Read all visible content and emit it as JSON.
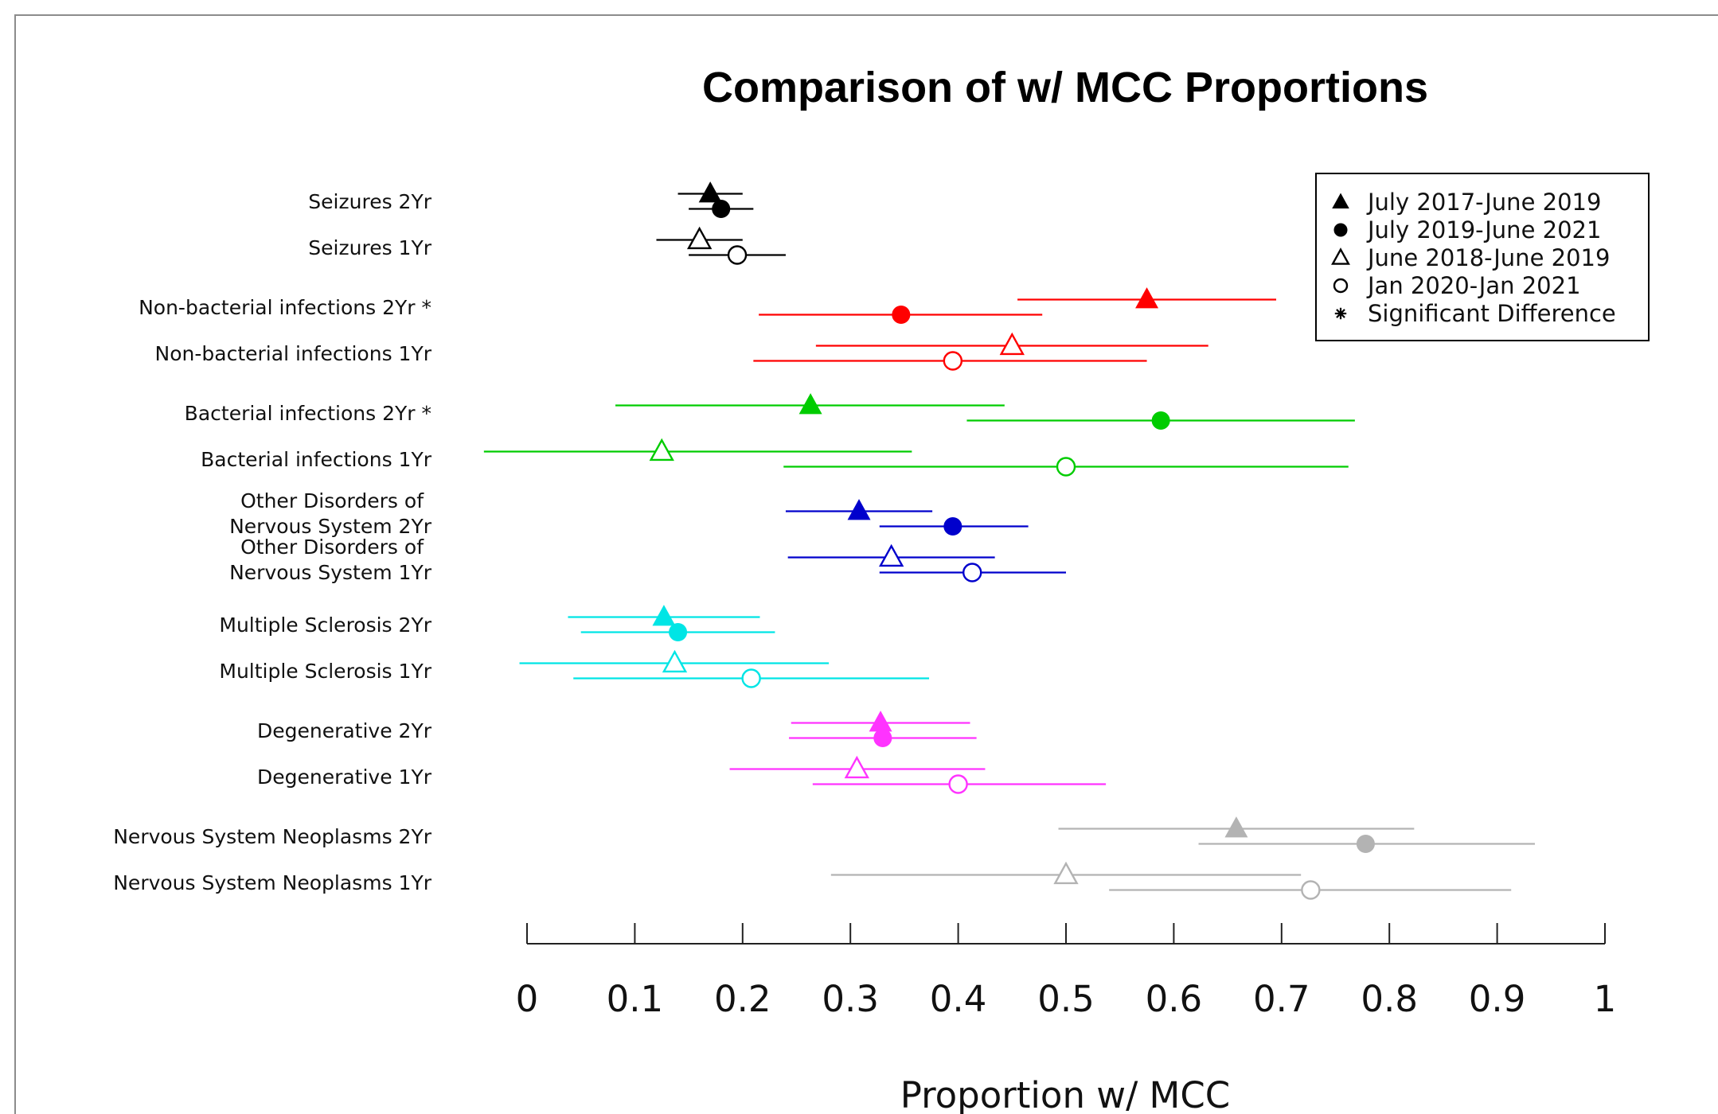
{
  "chart_data": {
    "type": "scatter",
    "subtype": "forest-plot-with-confidence-intervals",
    "title": "Comparison of w/ MCC Proportions",
    "xlabel": "Proportion w/ MCC",
    "ylabel": "",
    "xlim": [
      0,
      1
    ],
    "x_ticks": [
      "0",
      "0.1",
      "0.2",
      "0.3",
      "0.4",
      "0.5",
      "0.6",
      "0.7",
      "0.8",
      "0.9",
      "1"
    ],
    "grid": false,
    "legend_position": "top-right",
    "legend": [
      {
        "label": "July 2017-June 2019",
        "marker": "filled-triangle"
      },
      {
        "label": "July 2019-June 2021",
        "marker": "filled-circle"
      },
      {
        "label": "June 2018-June 2019",
        "marker": "open-triangle"
      },
      {
        "label": "Jan 2020-Jan 2021",
        "marker": "open-circle"
      },
      {
        "label": "Significant Difference",
        "marker": "asterisk"
      }
    ],
    "groups": [
      {
        "name": "Seizures",
        "color": "#000000",
        "rows": [
          {
            "label": "Seizures 2Yr",
            "label_lines": [
              "Seizures 2Yr"
            ],
            "points": [
              {
                "period": "July 2017-June 2019",
                "marker": "filled-triangle",
                "value": 0.17,
                "lo": 0.14,
                "hi": 0.2
              },
              {
                "period": "July 2019-June 2021",
                "marker": "filled-circle",
                "value": 0.18,
                "lo": 0.15,
                "hi": 0.21
              }
            ]
          },
          {
            "label": "Seizures 1Yr",
            "label_lines": [
              "Seizures 1Yr"
            ],
            "points": [
              {
                "period": "June 2018-June 2019",
                "marker": "open-triangle",
                "value": 0.16,
                "lo": 0.12,
                "hi": 0.2
              },
              {
                "period": "Jan 2020-Jan 2021",
                "marker": "open-circle",
                "value": 0.195,
                "lo": 0.15,
                "hi": 0.24
              }
            ]
          }
        ]
      },
      {
        "name": "Non-bacterial infections",
        "color": "#ff0000",
        "rows": [
          {
            "label": "Non-bacterial infections 2Yr *",
            "label_lines": [
              "Non-bacterial infections 2Yr *"
            ],
            "points": [
              {
                "period": "July 2017-June 2019",
                "marker": "filled-triangle",
                "value": 0.575,
                "lo": 0.455,
                "hi": 0.695
              },
              {
                "period": "July 2019-June 2021",
                "marker": "filled-circle",
                "value": 0.347,
                "lo": 0.215,
                "hi": 0.478
              }
            ]
          },
          {
            "label": "Non-bacterial infections 1Yr",
            "label_lines": [
              "Non-bacterial infections 1Yr"
            ],
            "points": [
              {
                "period": "June 2018-June 2019",
                "marker": "open-triangle",
                "value": 0.45,
                "lo": 0.268,
                "hi": 0.632
              },
              {
                "period": "Jan 2020-Jan 2021",
                "marker": "open-circle",
                "value": 0.395,
                "lo": 0.21,
                "hi": 0.575
              }
            ]
          }
        ]
      },
      {
        "name": "Bacterial infections",
        "color": "#00cc00",
        "rows": [
          {
            "label": "Bacterial infections 2Yr *",
            "label_lines": [
              "Bacterial infections 2Yr *"
            ],
            "points": [
              {
                "period": "July 2017-June 2019",
                "marker": "filled-triangle",
                "value": 0.263,
                "lo": 0.082,
                "hi": 0.443
              },
              {
                "period": "July 2019-June 2021",
                "marker": "filled-circle",
                "value": 0.588,
                "lo": 0.408,
                "hi": 0.768
              }
            ]
          },
          {
            "label": "Bacterial infections 1Yr",
            "label_lines": [
              "Bacterial infections 1Yr"
            ],
            "points": [
              {
                "period": "June 2018-June 2019",
                "marker": "open-triangle",
                "value": 0.125,
                "lo": -0.04,
                "hi": 0.357
              },
              {
                "period": "Jan 2020-Jan 2021",
                "marker": "open-circle",
                "value": 0.5,
                "lo": 0.238,
                "hi": 0.762
              }
            ]
          }
        ]
      },
      {
        "name": "Other Disorders of Nervous System",
        "color": "#0000cc",
        "rows": [
          {
            "label": "Other Disorders of Nervous System 2Yr",
            "label_lines": [
              "Other Disorders of",
              "Nervous System 2Yr"
            ],
            "points": [
              {
                "period": "July 2017-June 2019",
                "marker": "filled-triangle",
                "value": 0.308,
                "lo": 0.24,
                "hi": 0.376
              },
              {
                "period": "July 2019-June 2021",
                "marker": "filled-circle",
                "value": 0.395,
                "lo": 0.327,
                "hi": 0.465
              }
            ]
          },
          {
            "label": "Other Disorders of Nervous System 1Yr",
            "label_lines": [
              "Other Disorders of",
              "Nervous System 1Yr"
            ],
            "points": [
              {
                "period": "June 2018-June 2019",
                "marker": "open-triangle",
                "value": 0.338,
                "lo": 0.242,
                "hi": 0.434
              },
              {
                "period": "Jan 2020-Jan 2021",
                "marker": "open-circle",
                "value": 0.413,
                "lo": 0.327,
                "hi": 0.5
              }
            ]
          }
        ]
      },
      {
        "name": "Multiple Sclerosis",
        "color": "#00e5e5",
        "rows": [
          {
            "label": "Multiple Sclerosis 2Yr",
            "label_lines": [
              "Multiple Sclerosis 2Yr"
            ],
            "points": [
              {
                "period": "July 2017-June 2019",
                "marker": "filled-triangle",
                "value": 0.127,
                "lo": 0.038,
                "hi": 0.216
              },
              {
                "period": "July 2019-June 2021",
                "marker": "filled-circle",
                "value": 0.14,
                "lo": 0.05,
                "hi": 0.23
              }
            ]
          },
          {
            "label": "Multiple Sclerosis 1Yr",
            "label_lines": [
              "Multiple Sclerosis 1Yr"
            ],
            "points": [
              {
                "period": "June 2018-June 2019",
                "marker": "open-triangle",
                "value": 0.137,
                "lo": -0.007,
                "hi": 0.28
              },
              {
                "period": "Jan 2020-Jan 2021",
                "marker": "open-circle",
                "value": 0.208,
                "lo": 0.043,
                "hi": 0.373
              }
            ]
          }
        ]
      },
      {
        "name": "Degenerative",
        "color": "#ff33ff",
        "rows": [
          {
            "label": "Degenerative 2Yr",
            "label_lines": [
              "Degenerative 2Yr"
            ],
            "points": [
              {
                "period": "July 2017-June 2019",
                "marker": "filled-triangle",
                "value": 0.328,
                "lo": 0.245,
                "hi": 0.411
              },
              {
                "period": "July 2019-June 2021",
                "marker": "filled-circle",
                "value": 0.33,
                "lo": 0.243,
                "hi": 0.417
              }
            ]
          },
          {
            "label": "Degenerative 1Yr",
            "label_lines": [
              "Degenerative 1Yr"
            ],
            "points": [
              {
                "period": "June 2018-June 2019",
                "marker": "open-triangle",
                "value": 0.306,
                "lo": 0.188,
                "hi": 0.425
              },
              {
                "period": "Jan 2020-Jan 2021",
                "marker": "open-circle",
                "value": 0.4,
                "lo": 0.265,
                "hi": 0.537
              }
            ]
          }
        ]
      },
      {
        "name": "Nervous System Neoplasms",
        "color": "#b3b3b3",
        "rows": [
          {
            "label": "Nervous System Neoplasms 2Yr",
            "label_lines": [
              "Nervous System Neoplasms 2Yr"
            ],
            "points": [
              {
                "period": "July 2017-June 2019",
                "marker": "filled-triangle",
                "value": 0.658,
                "lo": 0.493,
                "hi": 0.823
              },
              {
                "period": "July 2019-June 2021",
                "marker": "filled-circle",
                "value": 0.778,
                "lo": 0.623,
                "hi": 0.935
              }
            ]
          },
          {
            "label": "Nervous System Neoplasms 1Yr",
            "label_lines": [
              "Nervous System Neoplasms 1Yr"
            ],
            "points": [
              {
                "period": "June 2018-June 2019",
                "marker": "open-triangle",
                "value": 0.5,
                "lo": 0.282,
                "hi": 0.718
              },
              {
                "period": "Jan 2020-Jan 2021",
                "marker": "open-circle",
                "value": 0.727,
                "lo": 0.54,
                "hi": 0.913
              }
            ]
          }
        ]
      }
    ]
  }
}
